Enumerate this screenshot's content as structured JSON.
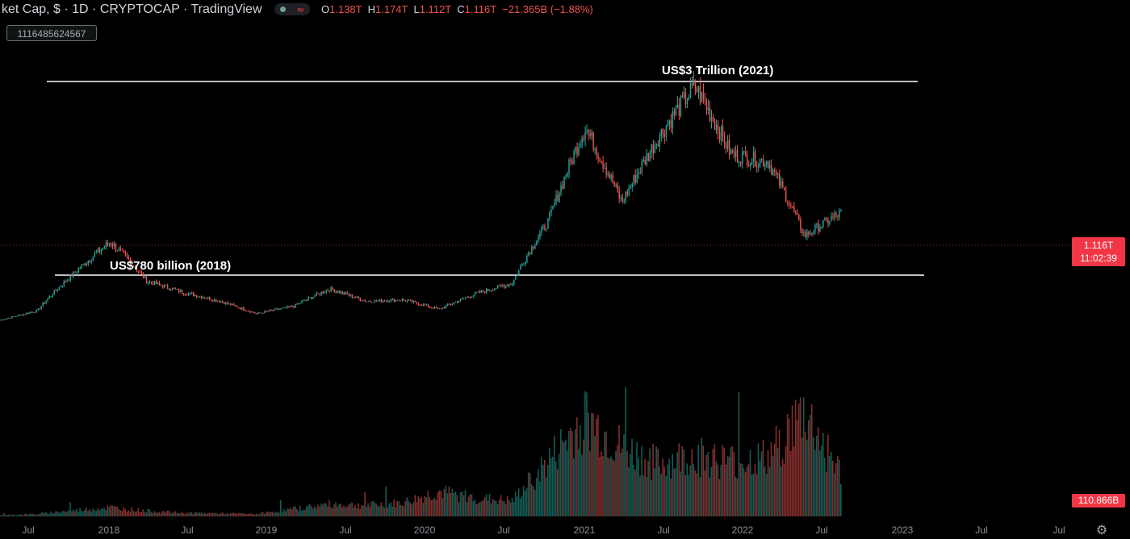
{
  "header": {
    "title": "ket Cap, $ · 1D · CRYPTOCAP · TradingView",
    "wave_glyph": "≈",
    "ohlc": {
      "o_label": "O",
      "o_value": "1.138T",
      "h_label": "H",
      "h_value": "1.174T",
      "l_label": "L",
      "l_value": "1.112T",
      "c_label": "C",
      "c_value": "1.116T",
      "change": "−21.365B (−1.88%)"
    },
    "price_box": "1116485624567"
  },
  "annotations": {
    "top": "US$3 Trillion (2021)",
    "bottom": "US$780 billion (2018)"
  },
  "price_axis": {
    "last_price": "1.116T",
    "countdown": "11:02:39",
    "volume_value": "110.866B"
  },
  "time_axis": {
    "labels": [
      "Jul",
      "2018",
      "Jul",
      "2019",
      "Jul",
      "2020",
      "Jul",
      "2021",
      "Jul",
      "2022",
      "Jul",
      "2023",
      "Jul",
      "Jul"
    ]
  },
  "colors": {
    "up": "#26a69a",
    "down": "#ef5350",
    "background": "#000000",
    "annotation_line": "#ffffff",
    "last_price_badge": "#f23645"
  },
  "icons": {
    "settings": "gear-icon"
  },
  "chart_data": {
    "type": "line",
    "title": "",
    "xlabel": "",
    "ylabel": "",
    "x": [
      "2017-06",
      "2017-09",
      "2017-12",
      "2018-01",
      "2018-04",
      "2018-07",
      "2018-10",
      "2019-01",
      "2019-04",
      "2019-07",
      "2019-10",
      "2020-01",
      "2020-03",
      "2020-07",
      "2020-10",
      "2021-01",
      "2021-04",
      "2021-07",
      "2021-09",
      "2021-11",
      "2022-01",
      "2022-04",
      "2022-06",
      "2022-08"
    ],
    "series": [
      {
        "values": [
          0.08,
          0.14,
          0.45,
          0.78,
          0.38,
          0.28,
          0.21,
          0.12,
          0.17,
          0.31,
          0.21,
          0.22,
          0.15,
          0.27,
          0.36,
          1.03,
          2.3,
          1.25,
          2.15,
          2.95,
          1.9,
          1.8,
          0.85,
          1.12
        ]
      }
    ],
    "volume": {
      "values": [
        2,
        4,
        10,
        15,
        9,
        6,
        5,
        4,
        12,
        20,
        18,
        22,
        40,
        30,
        25,
        90,
        160,
        110,
        85,
        100,
        90,
        95,
        170,
        70
      ],
      "last": 110.866
    },
    "hlines": [
      {
        "label": "US$3 Trillion (2021)",
        "value": 2.95
      },
      {
        "label": "US$780 billion (2018)",
        "value": 0.78
      }
    ],
    "ylim": [
      0,
      3.3
    ],
    "log_scale": false,
    "grid": false
  }
}
